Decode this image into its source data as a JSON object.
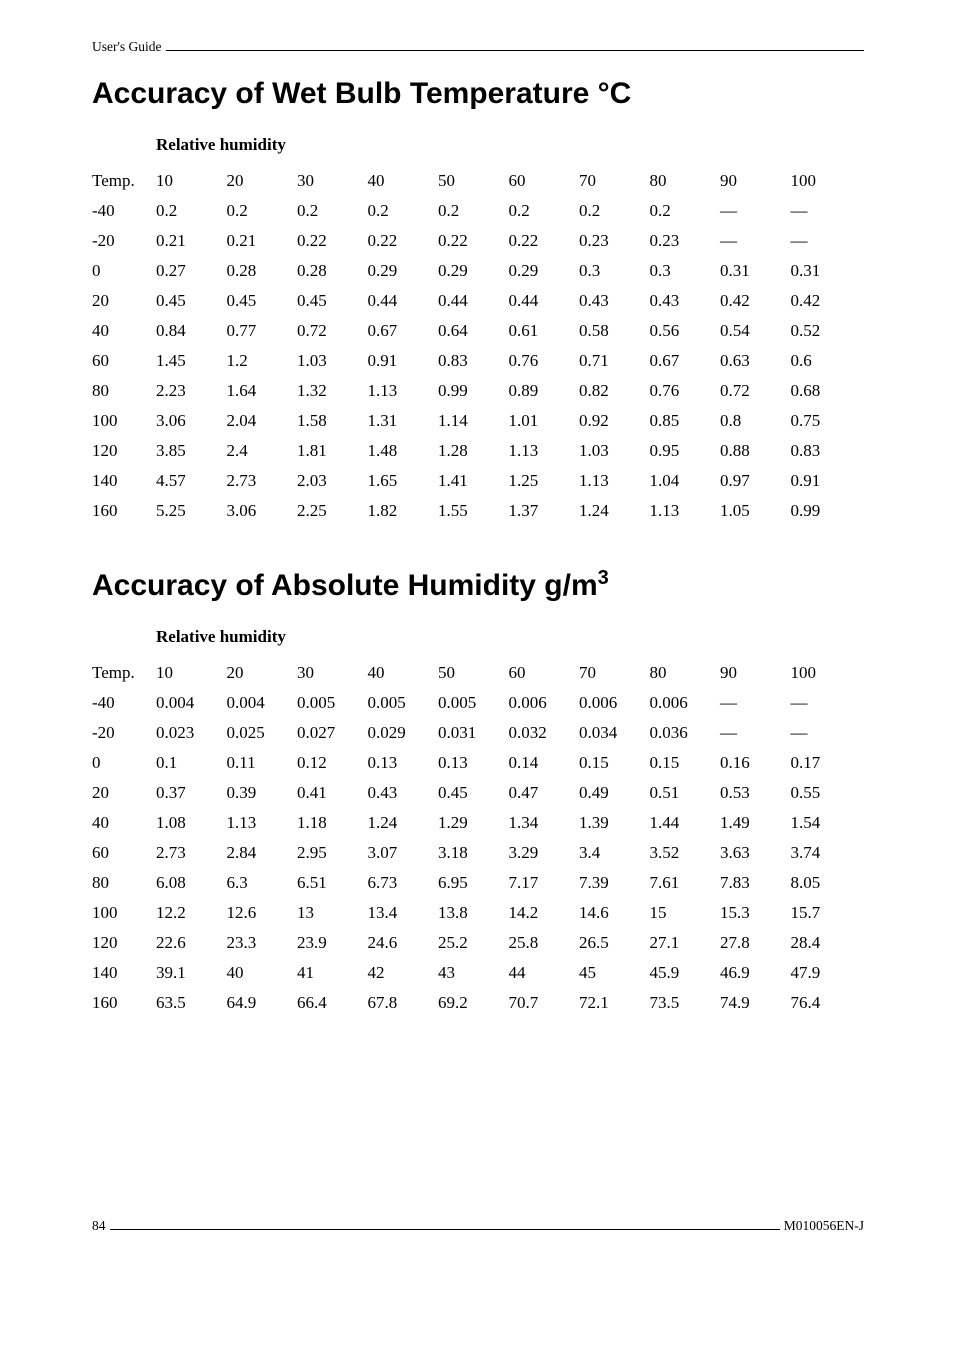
{
  "header": {
    "label": "User's Guide"
  },
  "footer": {
    "page": "84",
    "doc_id": "M010056EN-J"
  },
  "section1": {
    "title": "Accuracy of Wet Bulb Temperature °C",
    "subhead": "Relative humidity",
    "columns": [
      "Temp.",
      "10",
      "20",
      "30",
      "40",
      "50",
      "60",
      "70",
      "80",
      "90",
      "100"
    ],
    "rows": [
      [
        "-40",
        "0.2",
        "0.2",
        "0.2",
        "0.2",
        "0.2",
        "0.2",
        "0.2",
        "0.2",
        "—",
        "—"
      ],
      [
        "-20",
        "0.21",
        "0.21",
        "0.22",
        "0.22",
        "0.22",
        "0.22",
        "0.23",
        "0.23",
        "—",
        "—"
      ],
      [
        "0",
        "0.27",
        "0.28",
        "0.28",
        "0.29",
        "0.29",
        "0.29",
        "0.3",
        "0.3",
        "0.31",
        "0.31"
      ],
      [
        "20",
        "0.45",
        "0.45",
        "0.45",
        "0.44",
        "0.44",
        "0.44",
        "0.43",
        "0.43",
        "0.42",
        "0.42"
      ],
      [
        "40",
        "0.84",
        "0.77",
        "0.72",
        "0.67",
        "0.64",
        "0.61",
        "0.58",
        "0.56",
        "0.54",
        "0.52"
      ],
      [
        "60",
        "1.45",
        "1.2",
        "1.03",
        "0.91",
        "0.83",
        "0.76",
        "0.71",
        "0.67",
        "0.63",
        "0.6"
      ],
      [
        "80",
        "2.23",
        "1.64",
        "1.32",
        "1.13",
        "0.99",
        "0.89",
        "0.82",
        "0.76",
        "0.72",
        "0.68"
      ],
      [
        "100",
        "3.06",
        "2.04",
        "1.58",
        "1.31",
        "1.14",
        "1.01",
        "0.92",
        "0.85",
        "0.8",
        "0.75"
      ],
      [
        "120",
        "3.85",
        "2.4",
        "1.81",
        "1.48",
        "1.28",
        "1.13",
        "1.03",
        "0.95",
        "0.88",
        "0.83"
      ],
      [
        "140",
        "4.57",
        "2.73",
        "2.03",
        "1.65",
        "1.41",
        "1.25",
        "1.13",
        "1.04",
        "0.97",
        "0.91"
      ],
      [
        "160",
        "5.25",
        "3.06",
        "2.25",
        "1.82",
        "1.55",
        "1.37",
        "1.24",
        "1.13",
        "1.05",
        "0.99"
      ]
    ]
  },
  "section2": {
    "title_pre": "Accuracy of Absolute Humidity g/m",
    "title_sup": "3",
    "subhead": "Relative humidity",
    "columns": [
      "Temp.",
      "10",
      "20",
      "30",
      "40",
      "50",
      "60",
      "70",
      "80",
      "90",
      "100"
    ],
    "rows": [
      [
        "-40",
        "0.004",
        "0.004",
        "0.005",
        "0.005",
        "0.005",
        "0.006",
        "0.006",
        "0.006",
        "—",
        "—"
      ],
      [
        "-20",
        "0.023",
        "0.025",
        "0.027",
        "0.029",
        "0.031",
        "0.032",
        "0.034",
        "0.036",
        "—",
        "—"
      ],
      [
        "0",
        "0.1",
        "0.11",
        "0.12",
        "0.13",
        "0.13",
        "0.14",
        "0.15",
        "0.15",
        "0.16",
        "0.17"
      ],
      [
        "20",
        "0.37",
        "0.39",
        "0.41",
        "0.43",
        "0.45",
        "0.47",
        "0.49",
        "0.51",
        "0.53",
        "0.55"
      ],
      [
        "40",
        "1.08",
        "1.13",
        "1.18",
        "1.24",
        "1.29",
        "1.34",
        "1.39",
        "1.44",
        "1.49",
        "1.54"
      ],
      [
        "60",
        "2.73",
        "2.84",
        "2.95",
        "3.07",
        "3.18",
        "3.29",
        "3.4",
        "3.52",
        "3.63",
        "3.74"
      ],
      [
        "80",
        "6.08",
        "6.3",
        "6.51",
        "6.73",
        "6.95",
        "7.17",
        "7.39",
        "7.61",
        "7.83",
        "8.05"
      ],
      [
        "100",
        "12.2",
        "12.6",
        "13",
        "13.4",
        "13.8",
        "14.2",
        "14.6",
        "15",
        "15.3",
        "15.7"
      ],
      [
        "120",
        "22.6",
        "23.3",
        "23.9",
        "24.6",
        "25.2",
        "25.8",
        "26.5",
        "27.1",
        "27.8",
        "28.4"
      ],
      [
        "140",
        "39.1",
        "40",
        "41",
        "42",
        "43",
        "44",
        "45",
        "45.9",
        "46.9",
        "47.9"
      ],
      [
        "160",
        "63.5",
        "64.9",
        "66.4",
        "67.8",
        "69.2",
        "70.7",
        "72.1",
        "73.5",
        "74.9",
        "76.4"
      ]
    ]
  }
}
